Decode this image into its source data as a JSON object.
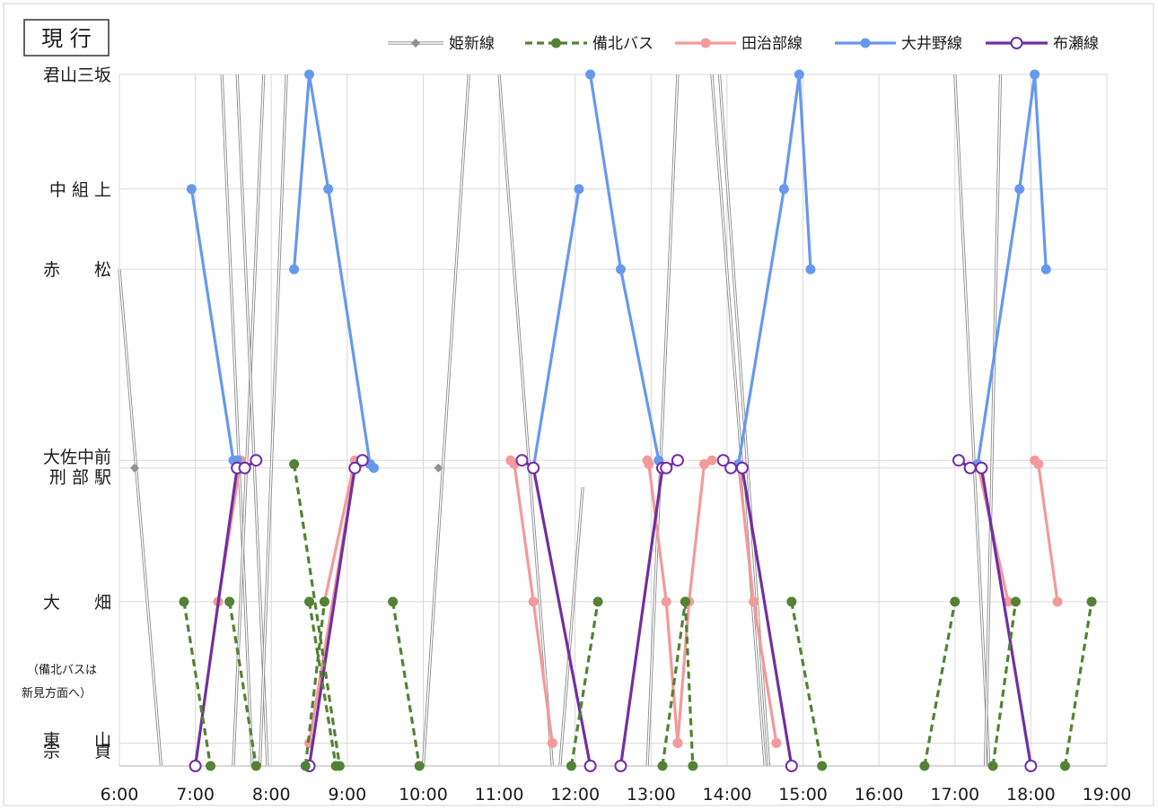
{
  "chart_data": {
    "type": "line",
    "title": "現 行",
    "note": [
      "（備北バスは",
      "新見方面へ）"
    ],
    "x_ticks": [
      "6:00",
      "7:00",
      "8:00",
      "9:00",
      "10:00",
      "11:00",
      "12:00",
      "13:00",
      "14:00",
      "15:00",
      "16:00",
      "17:00",
      "18:00",
      "19:00"
    ],
    "xlim": [
      6,
      19
    ],
    "stations": [
      {
        "label": "君山三坂",
        "pos": 0
      },
      {
        "label": "中 組 上",
        "pos": 1.5
      },
      {
        "label": "赤　　松",
        "pos": 2.55
      },
      {
        "label": "大佐中前",
        "pos": 5.05
      },
      {
        "label": "刑 部 駅",
        "pos": 5.15
      },
      {
        "label": "大　　畑",
        "pos": 6.9
      },
      {
        "label": "東　　山",
        "pos": 8.75
      },
      {
        "label": "宗　　貞",
        "pos": 9.05
      }
    ],
    "ylim": [
      0,
      9.05
    ],
    "grid": true,
    "legend_position": "top-right",
    "series": [
      {
        "name": "姫新線",
        "color": "#a0a0a0",
        "style": "double",
        "marker": "diamond",
        "markers": [
          [
            6.2,
            5.15
          ],
          [
            10.2,
            5.15
          ]
        ],
        "segments": [
          [
            [
              6.0,
              2.55
            ],
            [
              6.55,
              9.05
            ]
          ],
          [
            [
              7.35,
              0
            ],
            [
              7.75,
              9.05
            ]
          ],
          [
            [
              7.5,
              9.05
            ],
            [
              7.9,
              0
            ]
          ],
          [
            [
              7.55,
              0
            ],
            [
              7.95,
              9.05
            ]
          ],
          [
            [
              7.85,
              9.05
            ],
            [
              8.2,
              0
            ]
          ],
          [
            [
              10.0,
              9.05
            ],
            [
              10.6,
              0
            ]
          ],
          [
            [
              11.0,
              0
            ],
            [
              11.7,
              9.05
            ]
          ],
          [
            [
              11.8,
              9.05
            ],
            [
              12.1,
              5.4
            ]
          ],
          [
            [
              12.95,
              9.05
            ],
            [
              13.35,
              0
            ]
          ],
          [
            [
              13.8,
              0
            ],
            [
              14.5,
              9.05
            ]
          ],
          [
            [
              13.9,
              0
            ],
            [
              14.55,
              9.05
            ]
          ],
          [
            [
              17.0,
              0
            ],
            [
              17.45,
              9.05
            ]
          ],
          [
            [
              17.4,
              9.05
            ],
            [
              17.6,
              0
            ]
          ]
        ]
      },
      {
        "name": "備北バス",
        "color": "#548235",
        "style": "dashed",
        "marker": "dot",
        "segments": [
          [
            [
              6.85,
              6.9
            ],
            [
              7.2,
              9.05
            ]
          ],
          [
            [
              7.45,
              6.9
            ],
            [
              7.8,
              9.05
            ]
          ],
          [
            [
              8.3,
              5.1
            ],
            [
              8.9,
              9.05
            ]
          ],
          [
            [
              8.5,
              6.9
            ],
            [
              8.85,
              9.05
            ]
          ],
          [
            [
              8.45,
              9.05
            ],
            [
              8.7,
              6.9
            ]
          ],
          [
            [
              9.6,
              6.9
            ],
            [
              9.95,
              9.05
            ]
          ],
          [
            [
              11.95,
              9.05
            ],
            [
              12.3,
              6.9
            ]
          ],
          [
            [
              13.15,
              9.05
            ],
            [
              13.45,
              6.9
            ]
          ],
          [
            [
              13.45,
              6.9
            ],
            [
              13.55,
              9.05
            ]
          ],
          [
            [
              14.85,
              6.9
            ],
            [
              15.25,
              9.05
            ]
          ],
          [
            [
              16.6,
              9.05
            ],
            [
              17.0,
              6.9
            ]
          ],
          [
            [
              17.5,
              9.05
            ],
            [
              17.8,
              6.9
            ]
          ],
          [
            [
              18.45,
              9.05
            ],
            [
              18.8,
              6.9
            ]
          ]
        ]
      },
      {
        "name": "田治部線",
        "color": "#f39a9a",
        "style": "solid",
        "marker": "dot",
        "segments": [
          [
            [
              7.3,
              6.9
            ],
            [
              7.6,
              5.05
            ]
          ],
          [
            [
              8.5,
              8.75
            ],
            [
              9.1,
              5.15
            ],
            [
              9.15,
              5.1
            ]
          ],
          [
            [
              8.7,
              6.9
            ],
            [
              9.1,
              5.05
            ]
          ],
          [
            [
              11.15,
              5.05
            ],
            [
              11.2,
              5.1
            ],
            [
              11.45,
              6.9
            ],
            [
              11.7,
              8.75
            ]
          ],
          [
            [
              12.95,
              5.05
            ],
            [
              12.97,
              5.1
            ],
            [
              13.2,
              6.9
            ],
            [
              13.35,
              8.75
            ]
          ],
          [
            [
              13.35,
              8.75
            ],
            [
              13.5,
              6.9
            ],
            [
              13.7,
              5.1
            ],
            [
              13.8,
              5.05
            ]
          ],
          [
            [
              14.15,
              5.1
            ],
            [
              14.35,
              6.9
            ],
            [
              14.65,
              8.75
            ]
          ],
          [
            [
              17.7,
              6.9
            ],
            [
              17.3,
              5.1
            ]
          ],
          [
            [
              18.05,
              5.05
            ],
            [
              18.1,
              5.1
            ],
            [
              18.35,
              6.9
            ]
          ]
        ]
      },
      {
        "name": "大井野線",
        "color": "#6699ee",
        "style": "solid",
        "marker": "dot",
        "segments": [
          [
            [
              6.95,
              1.5
            ],
            [
              7.5,
              5.05
            ],
            [
              7.55,
              5.05
            ]
          ],
          [
            [
              8.3,
              2.55
            ],
            [
              8.5,
              0
            ],
            [
              8.75,
              1.5
            ],
            [
              9.3,
              5.1
            ],
            [
              9.35,
              5.15
            ]
          ],
          [
            [
              11.45,
              5.15
            ],
            [
              12.05,
              1.5
            ]
          ],
          [
            [
              12.2,
              0
            ],
            [
              12.6,
              2.55
            ],
            [
              13.1,
              5.05
            ]
          ],
          [
            [
              14.15,
              5.1
            ],
            [
              14.75,
              1.5
            ],
            [
              14.95,
              0
            ],
            [
              15.1,
              2.55
            ]
          ],
          [
            [
              17.3,
              5.1
            ],
            [
              17.85,
              1.5
            ],
            [
              18.05,
              0
            ],
            [
              18.2,
              2.55
            ]
          ]
        ]
      },
      {
        "name": "布瀬線",
        "color": "#7030a0",
        "style": "solid",
        "marker": "hollow",
        "segments": [
          [
            [
              7.0,
              9.05
            ],
            [
              7.55,
              5.15
            ],
            [
              7.65,
              5.15
            ],
            [
              7.8,
              5.05
            ]
          ],
          [
            [
              8.5,
              9.05
            ],
            [
              9.1,
              5.15
            ],
            [
              9.2,
              5.05
            ]
          ],
          [
            [
              11.3,
              5.05
            ],
            [
              11.45,
              5.15
            ],
            [
              12.2,
              9.05
            ]
          ],
          [
            [
              12.6,
              9.05
            ],
            [
              13.15,
              5.15
            ],
            [
              13.2,
              5.15
            ],
            [
              13.35,
              5.05
            ]
          ],
          [
            [
              13.95,
              5.05
            ],
            [
              14.05,
              5.15
            ],
            [
              14.2,
              5.15
            ],
            [
              14.85,
              9.05
            ]
          ],
          [
            [
              17.05,
              5.05
            ],
            [
              17.2,
              5.15
            ],
            [
              17.35,
              5.15
            ],
            [
              18.0,
              9.05
            ]
          ]
        ]
      }
    ]
  }
}
